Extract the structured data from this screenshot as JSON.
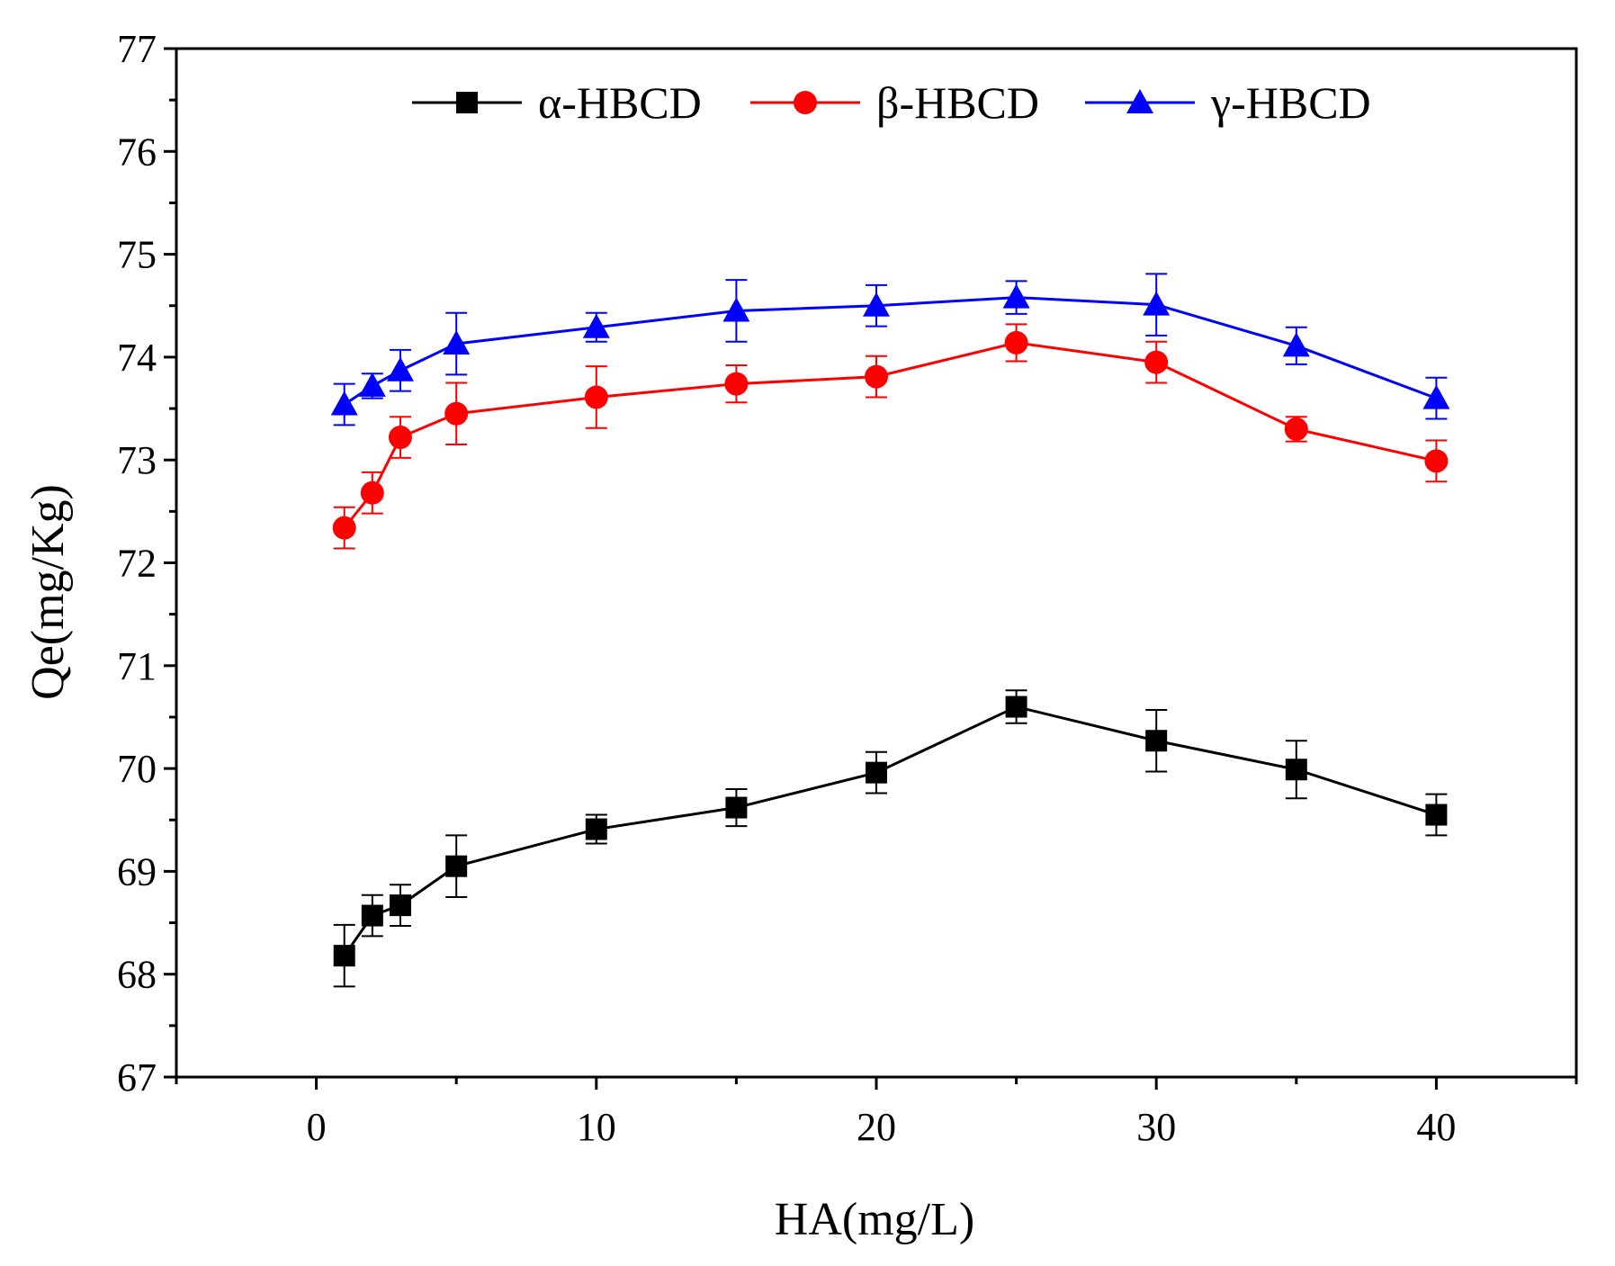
{
  "chart_data": {
    "type": "line",
    "title": "",
    "xlabel": "HA(mg/L)",
    "ylabel": "Qe(mg/Kg)",
    "xlim": [
      -5,
      45
    ],
    "ylim": [
      67,
      77
    ],
    "x_ticks": [
      0,
      10,
      20,
      30,
      40
    ],
    "y_ticks": [
      67,
      68,
      69,
      70,
      71,
      72,
      73,
      74,
      75,
      76,
      77
    ],
    "x_tick_labels": [
      "0",
      "10",
      "20",
      "30",
      "40"
    ],
    "y_tick_labels": [
      "67",
      "68",
      "69",
      "70",
      "71",
      "72",
      "73",
      "74",
      "75",
      "76",
      "77"
    ],
    "x": [
      1,
      2,
      3,
      5,
      10,
      15,
      20,
      25,
      30,
      35,
      40
    ],
    "legend_position": "top",
    "series": [
      {
        "name": "α-HBCD",
        "color": "#000000",
        "marker": "square",
        "values": [
          68.18,
          68.57,
          68.67,
          69.05,
          69.41,
          69.62,
          69.96,
          70.6,
          70.27,
          69.99,
          69.55
        ],
        "errors": [
          0.3,
          0.2,
          0.2,
          0.3,
          0.14,
          0.18,
          0.2,
          0.16,
          0.3,
          0.28,
          0.2
        ]
      },
      {
        "name": "β-HBCD",
        "color": "#ff0000",
        "marker": "circle",
        "values": [
          72.34,
          72.68,
          73.22,
          73.45,
          73.61,
          73.74,
          73.81,
          74.14,
          73.95,
          73.3,
          72.99
        ],
        "errors": [
          0.2,
          0.2,
          0.2,
          0.3,
          0.3,
          0.18,
          0.2,
          0.18,
          0.2,
          0.12,
          0.2
        ]
      },
      {
        "name": "γ-HBCD",
        "color": "#0000ff",
        "marker": "triangle",
        "values": [
          73.54,
          73.72,
          73.87,
          74.13,
          74.29,
          74.45,
          74.5,
          74.58,
          74.51,
          74.11,
          73.6
        ],
        "errors": [
          0.2,
          0.12,
          0.2,
          0.3,
          0.14,
          0.3,
          0.2,
          0.16,
          0.3,
          0.18,
          0.2
        ]
      }
    ]
  }
}
